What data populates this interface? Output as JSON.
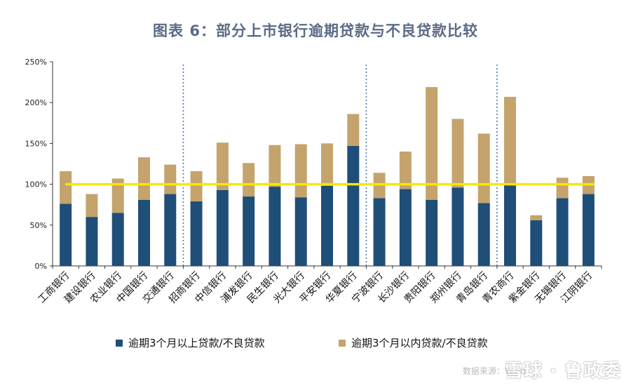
{
  "title": "图表 6：部分上市银行逾期贷款与不良贷款比较",
  "legend": {
    "series1": "逾期3个月以上贷款/不良贷款",
    "series2": "逾期3个月以内贷款/不良贷款"
  },
  "colors": {
    "series1": "#1f4e79",
    "series2": "#c4a36d",
    "reference": "#f5e800",
    "divider": "#4a7bb0"
  },
  "watermark": {
    "text": "雪球 · 鲁政委",
    "source": "数据来源：Wind"
  },
  "chart_data": {
    "type": "bar",
    "stacked": true,
    "title": "图表 6：部分上市银行逾期贷款与不良贷款比较",
    "xlabel": "",
    "ylabel": "",
    "ylim": [
      0,
      250
    ],
    "yticks": [
      "0%",
      "50%",
      "100%",
      "150%",
      "200%",
      "250%"
    ],
    "ytick_values": [
      0,
      50,
      100,
      150,
      200,
      250
    ],
    "reference_line": 100,
    "group_dividers_after": [
      "交通银行",
      "华夏银行",
      "青岛银行"
    ],
    "categories": [
      "工商银行",
      "建设银行",
      "农业银行",
      "中国银行",
      "交通银行",
      "招商银行",
      "中信银行",
      "浦发银行",
      "民生银行",
      "光大银行",
      "平安银行",
      "华夏银行",
      "宁波银行",
      "长沙银行",
      "贵阳银行",
      "郑州银行",
      "青岛银行",
      "青农商行",
      "紫金银行",
      "无锡银行",
      "江阴银行"
    ],
    "series": [
      {
        "name": "逾期3个月以上贷款/不良贷款",
        "values": [
          76,
          60,
          65,
          81,
          88,
          79,
          93,
          85,
          97,
          84,
          98,
          147,
          83,
          94,
          81,
          96,
          77,
          99,
          56,
          83,
          88
        ]
      },
      {
        "name": "逾期3个月以内贷款/不良贷款",
        "values": [
          40,
          28,
          42,
          52,
          36,
          37,
          58,
          41,
          51,
          65,
          52,
          39,
          31,
          46,
          138,
          84,
          85,
          108,
          6,
          25,
          22
        ]
      }
    ]
  }
}
